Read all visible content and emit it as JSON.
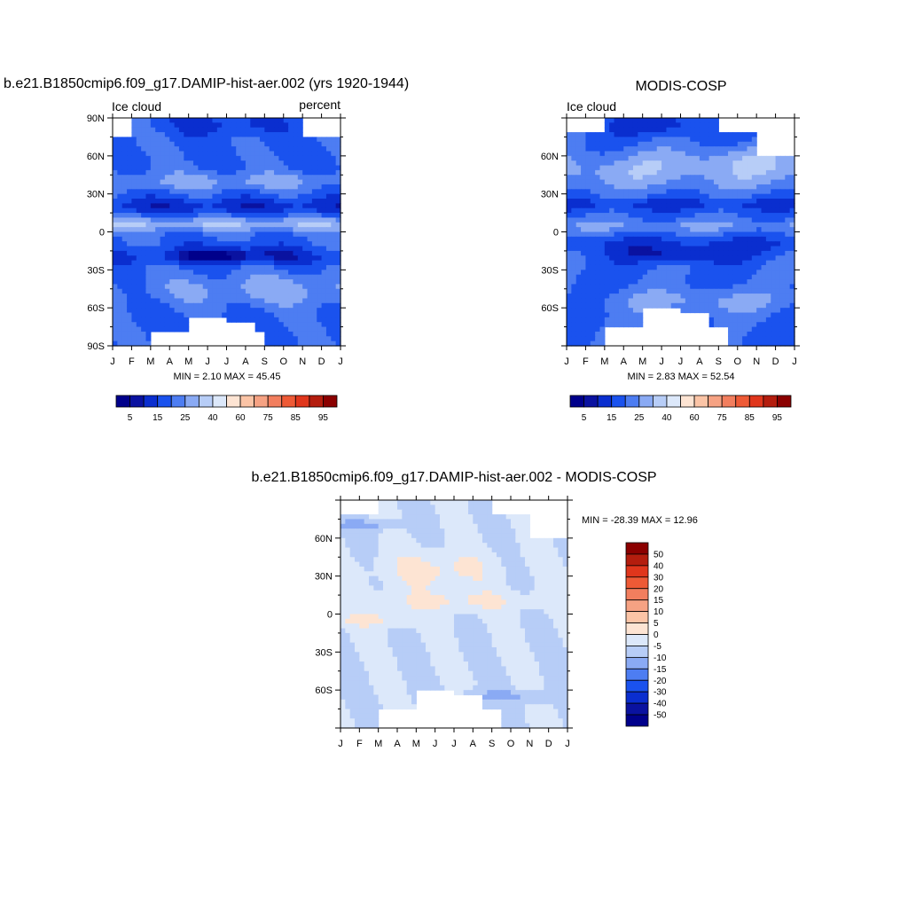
{
  "palette": [
    "#00008b",
    "#0a12a0",
    "#0a2ecf",
    "#1a52ee",
    "#4d7df2",
    "#8aaaf4",
    "#b7cdf7",
    "#dce8fa",
    "#fde4d3",
    "#fbc4a6",
    "#f6a283",
    "#f27e5e",
    "#ee5a36",
    "#e0361c",
    "#b41d0e",
    "#8b0000"
  ],
  "cbar_top_labels": [
    "5",
    "15",
    "25",
    "40",
    "60",
    "75",
    "85",
    "95"
  ],
  "cbar_diff_labels": [
    "50",
    "40",
    "30",
    "20",
    "15",
    "10",
    "5",
    "0",
    "-5",
    "-10",
    "-15",
    "-20",
    "-30",
    "-40",
    "-50"
  ],
  "chart_data": [
    {
      "type": "heatmap",
      "title": "b.e21.B1850cmip6.f09_g17.DAMIP-hist-aer.002 (yrs 1920-1944)",
      "left_label": "Ice cloud",
      "right_label": "percent",
      "stats": "MIN =   2.10 MAX =  45.45",
      "min": 2.1,
      "max": 45.45,
      "x_ticks": [
        "J",
        "F",
        "M",
        "A",
        "M",
        "J",
        "J",
        "A",
        "S",
        "O",
        "N",
        "D",
        "J"
      ],
      "y_ticks": [
        "90N",
        "60N",
        "30N",
        "0",
        "30S",
        "60S",
        "90S"
      ],
      "xlim": [
        0,
        12
      ],
      "ylim": [
        -90,
        90
      ],
      "units": "percent"
    },
    {
      "type": "heatmap",
      "title": "MODIS-COSP",
      "left_label": "Ice cloud",
      "stats": "MIN =   2.83 MAX =  52.54",
      "min": 2.83,
      "max": 52.54,
      "x_ticks": [
        "J",
        "F",
        "M",
        "A",
        "M",
        "J",
        "J",
        "A",
        "S",
        "O",
        "N",
        "D",
        "J"
      ],
      "y_ticks": [
        "60N",
        "30N",
        "0",
        "30S",
        "60S"
      ],
      "xlim": [
        0,
        12
      ],
      "ylim": [
        -90,
        90
      ]
    },
    {
      "type": "heatmap",
      "title": "b.e21.B1850cmip6.f09_g17.DAMIP-hist-aer.002 - MODIS-COSP",
      "stats": "MIN = -28.39 MAX =  12.96",
      "min": -28.39,
      "max": 12.96,
      "x_ticks": [
        "J",
        "F",
        "M",
        "A",
        "M",
        "J",
        "J",
        "A",
        "S",
        "O",
        "N",
        "D",
        "J"
      ],
      "y_ticks": [
        "60N",
        "30N",
        "0",
        "30S",
        "60S"
      ],
      "xlim": [
        0,
        12
      ],
      "ylim": [
        -90,
        90
      ]
    }
  ]
}
